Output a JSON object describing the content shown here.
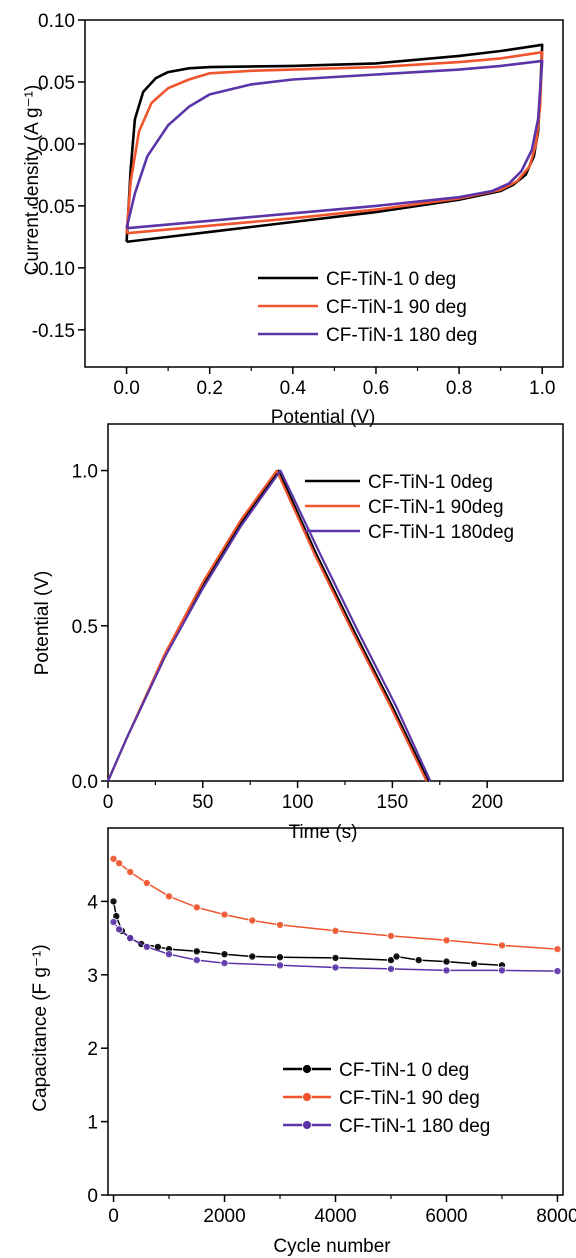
{
  "chart_data": [
    {
      "type": "line",
      "xlabel": "Potential (V)",
      "ylabel": "Current density (A g⁻¹)",
      "xlim": [
        -0.1,
        1.05
      ],
      "ylim": [
        -0.18,
        0.1
      ],
      "xticks": [
        0.0,
        0.2,
        0.4,
        0.6,
        0.8,
        1.0
      ],
      "xtick_labels": [
        "0.0",
        "0.2",
        "0.4",
        "0.6",
        "0.8",
        "1.0"
      ],
      "yticks": [
        0.1,
        0.05,
        0.0,
        -0.05,
        -0.1,
        -0.15
      ],
      "ytick_labels": [
        "0.10",
        "0.05",
        "0.00",
        "-0.05",
        "-0.10",
        "-0.15"
      ],
      "legend_position": "bottom-right",
      "series": [
        {
          "name": "CF-TiN-1  0 deg",
          "color": "#000000",
          "upper": [
            [
              0.0,
              -0.079
            ],
            [
              0.01,
              -0.02
            ],
            [
              0.02,
              0.02
            ],
            [
              0.04,
              0.042
            ],
            [
              0.07,
              0.053
            ],
            [
              0.1,
              0.058
            ],
            [
              0.15,
              0.061
            ],
            [
              0.2,
              0.062
            ],
            [
              0.4,
              0.063
            ],
            [
              0.6,
              0.065
            ],
            [
              0.8,
              0.071
            ],
            [
              0.9,
              0.075
            ],
            [
              1.0,
              0.08
            ]
          ],
          "lower": [
            [
              1.0,
              0.08
            ],
            [
              0.995,
              0.04
            ],
            [
              0.99,
              0.01
            ],
            [
              0.98,
              -0.01
            ],
            [
              0.96,
              -0.025
            ],
            [
              0.93,
              -0.033
            ],
            [
              0.9,
              -0.038
            ],
            [
              0.8,
              -0.045
            ],
            [
              0.6,
              -0.055
            ],
            [
              0.4,
              -0.063
            ],
            [
              0.2,
              -0.071
            ],
            [
              0.0,
              -0.079
            ]
          ]
        },
        {
          "name": "CF-TiN-1  90 deg",
          "color": "#f0552d",
          "upper": [
            [
              0.0,
              -0.072
            ],
            [
              0.01,
              -0.03
            ],
            [
              0.03,
              0.01
            ],
            [
              0.06,
              0.033
            ],
            [
              0.1,
              0.045
            ],
            [
              0.15,
              0.052
            ],
            [
              0.2,
              0.057
            ],
            [
              0.3,
              0.059
            ],
            [
              0.4,
              0.06
            ],
            [
              0.6,
              0.062
            ],
            [
              0.8,
              0.066
            ],
            [
              0.9,
              0.069
            ],
            [
              1.0,
              0.074
            ]
          ],
          "lower": [
            [
              1.0,
              0.074
            ],
            [
              0.995,
              0.03
            ],
            [
              0.985,
              0.0
            ],
            [
              0.97,
              -0.018
            ],
            [
              0.94,
              -0.03
            ],
            [
              0.9,
              -0.037
            ],
            [
              0.8,
              -0.044
            ],
            [
              0.6,
              -0.053
            ],
            [
              0.4,
              -0.06
            ],
            [
              0.2,
              -0.066
            ],
            [
              0.0,
              -0.072
            ]
          ]
        },
        {
          "name": "CF-TiN-1  180 deg",
          "color": "#5b35a8",
          "upper": [
            [
              0.0,
              -0.068
            ],
            [
              0.02,
              -0.04
            ],
            [
              0.05,
              -0.01
            ],
            [
              0.1,
              0.015
            ],
            [
              0.15,
              0.03
            ],
            [
              0.2,
              0.04
            ],
            [
              0.3,
              0.048
            ],
            [
              0.4,
              0.052
            ],
            [
              0.6,
              0.056
            ],
            [
              0.8,
              0.06
            ],
            [
              0.9,
              0.063
            ],
            [
              1.0,
              0.067
            ]
          ],
          "lower": [
            [
              1.0,
              0.067
            ],
            [
              0.99,
              0.02
            ],
            [
              0.975,
              -0.005
            ],
            [
              0.95,
              -0.022
            ],
            [
              0.92,
              -0.032
            ],
            [
              0.88,
              -0.038
            ],
            [
              0.8,
              -0.043
            ],
            [
              0.6,
              -0.05
            ],
            [
              0.4,
              -0.056
            ],
            [
              0.2,
              -0.062
            ],
            [
              0.0,
              -0.068
            ]
          ]
        }
      ]
    },
    {
      "type": "line",
      "xlabel": "Time (s)",
      "ylabel": "Potential (V)",
      "xlim": [
        0,
        240
      ],
      "ylim": [
        0,
        1.15
      ],
      "xticks": [
        0,
        50,
        100,
        150,
        200
      ],
      "xtick_labels": [
        "0",
        "50",
        "100",
        "150",
        "200"
      ],
      "yticks": [
        0.0,
        0.5,
        1.0
      ],
      "ytick_labels": [
        "0.0",
        "0.5",
        "1.0"
      ],
      "legend_position": "top-right",
      "series": [
        {
          "name": "CF-TiN-1  0deg",
          "color": "#000000",
          "points": [
            [
              0,
              0.0
            ],
            [
              10,
              0.14
            ],
            [
              30,
              0.4
            ],
            [
              50,
              0.63
            ],
            [
              70,
              0.83
            ],
            [
              90,
              1.0
            ],
            [
              110,
              0.73
            ],
            [
              130,
              0.48
            ],
            [
              150,
              0.24
            ],
            [
              169,
              0.0
            ]
          ]
        },
        {
          "name": "CF-TiN-1  90deg",
          "color": "#f0552d",
          "points": [
            [
              0,
              0.0
            ],
            [
              10,
              0.14
            ],
            [
              30,
              0.41
            ],
            [
              50,
              0.64
            ],
            [
              70,
              0.84
            ],
            [
              89,
              1.0
            ],
            [
              109,
              0.73
            ],
            [
              129,
              0.48
            ],
            [
              149,
              0.24
            ],
            [
              168,
              0.0
            ]
          ]
        },
        {
          "name": "CF-TiN-1  180deg",
          "color": "#5b35a8",
          "points": [
            [
              0,
              0.0
            ],
            [
              10,
              0.14
            ],
            [
              30,
              0.4
            ],
            [
              50,
              0.62
            ],
            [
              70,
              0.82
            ],
            [
              91,
              1.0
            ],
            [
              112,
              0.73
            ],
            [
              132,
              0.48
            ],
            [
              152,
              0.24
            ],
            [
              170,
              0.0
            ]
          ]
        }
      ]
    },
    {
      "type": "scatter",
      "xlabel": "Cycle number",
      "ylabel": "Capacitance (F g⁻¹)",
      "xlim": [
        -100,
        8100
      ],
      "ylim": [
        0,
        5
      ],
      "xticks": [
        0,
        2000,
        4000,
        6000,
        8000
      ],
      "xtick_labels": [
        "0",
        "2000",
        "4000",
        "6000",
        "8000"
      ],
      "yticks": [
        0,
        1,
        2,
        3,
        4
      ],
      "ytick_labels": [
        "0",
        "1",
        "2",
        "3",
        "4"
      ],
      "legend_position": "bottom-right",
      "series": [
        {
          "name": "CF-TiN-1  0 deg",
          "color": "#000000",
          "points": [
            [
              0,
              4.0
            ],
            [
              50,
              3.8
            ],
            [
              150,
              3.6
            ],
            [
              300,
              3.5
            ],
            [
              500,
              3.42
            ],
            [
              800,
              3.38
            ],
            [
              1000,
              3.35
            ],
            [
              1500,
              3.32
            ],
            [
              2000,
              3.28
            ],
            [
              2500,
              3.25
            ],
            [
              3000,
              3.24
            ],
            [
              4000,
              3.23
            ],
            [
              5000,
              3.2
            ],
            [
              5100,
              3.25
            ],
            [
              5500,
              3.2
            ],
            [
              6000,
              3.18
            ],
            [
              6500,
              3.15
            ],
            [
              7000,
              3.13
            ]
          ]
        },
        {
          "name": "CF-TiN-1  90 deg",
          "color": "#f0552d",
          "points": [
            [
              0,
              4.58
            ],
            [
              100,
              4.52
            ],
            [
              300,
              4.4
            ],
            [
              600,
              4.25
            ],
            [
              1000,
              4.07
            ],
            [
              1500,
              3.92
            ],
            [
              2000,
              3.82
            ],
            [
              2500,
              3.74
            ],
            [
              3000,
              3.68
            ],
            [
              4000,
              3.6
            ],
            [
              5000,
              3.53
            ],
            [
              6000,
              3.47
            ],
            [
              7000,
              3.4
            ],
            [
              8000,
              3.35
            ]
          ]
        },
        {
          "name": "CF-TiN-1  180 deg",
          "color": "#5b35a8",
          "points": [
            [
              0,
              3.72
            ],
            [
              100,
              3.62
            ],
            [
              300,
              3.5
            ],
            [
              600,
              3.38
            ],
            [
              1000,
              3.28
            ],
            [
              1500,
              3.2
            ],
            [
              2000,
              3.16
            ],
            [
              3000,
              3.13
            ],
            [
              4000,
              3.1
            ],
            [
              5000,
              3.08
            ],
            [
              6000,
              3.06
            ],
            [
              7000,
              3.06
            ],
            [
              8000,
              3.05
            ]
          ]
        }
      ]
    }
  ]
}
